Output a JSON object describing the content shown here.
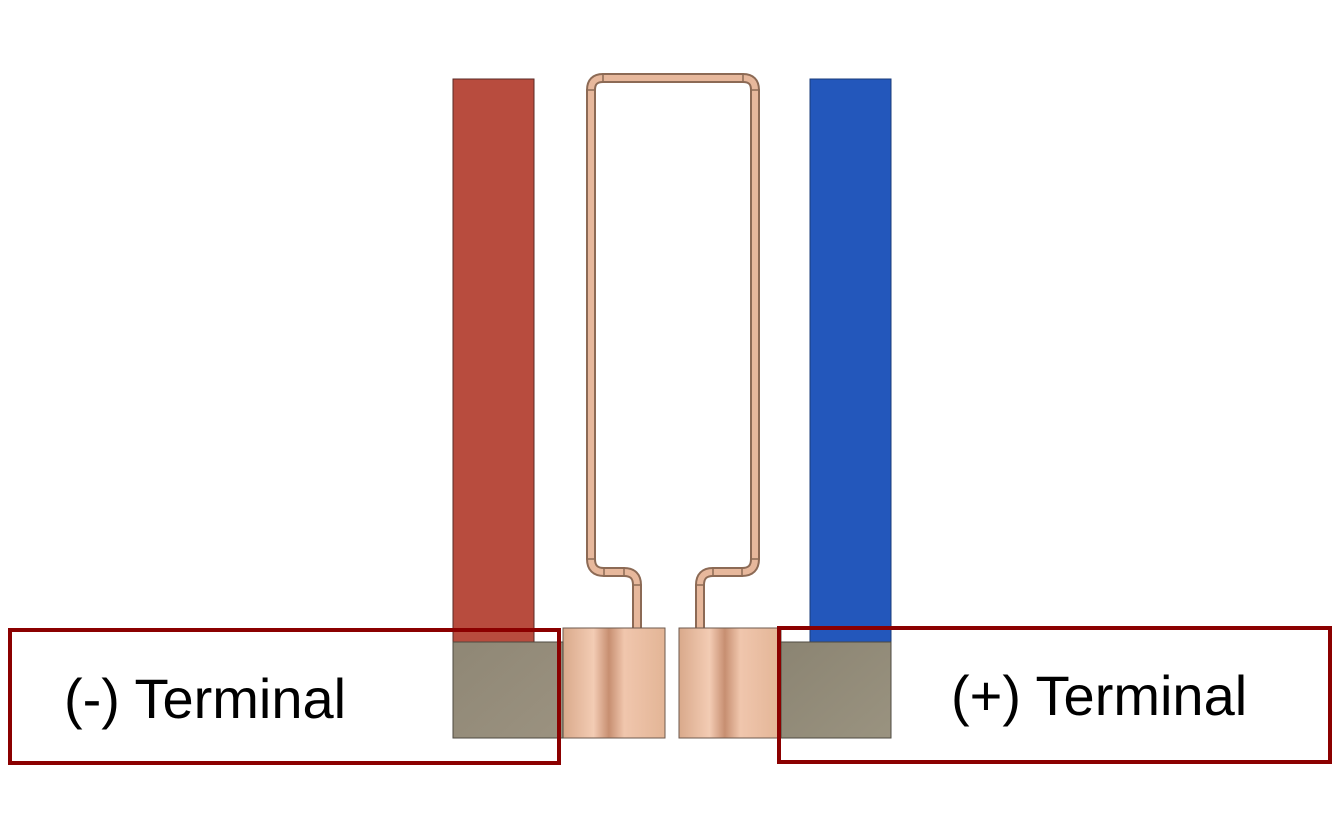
{
  "terminals": {
    "negative": {
      "label": "(-) Terminal",
      "bar_color": "#b84c3e"
    },
    "positive": {
      "label": "(+) Terminal",
      "bar_color": "#2357bb"
    }
  },
  "colors": {
    "label_border": "#8b0000",
    "terminal_block": "#928a78",
    "copper": "#e7b89c",
    "copper_outline": "#8c6a55"
  }
}
